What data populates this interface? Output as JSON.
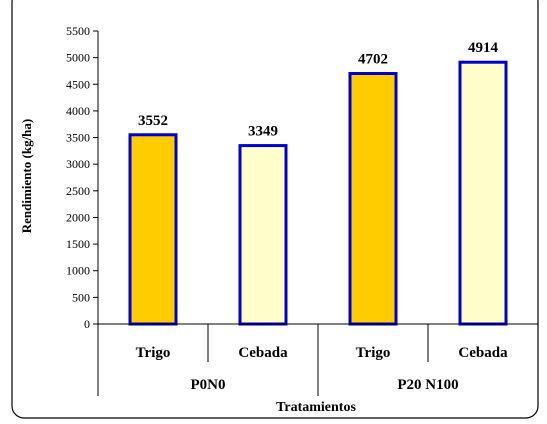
{
  "chart_data": {
    "type": "bar",
    "xlabel": "Tratamientos",
    "ylabel": "Rendimiento (kg/ha)",
    "ylim": [
      0,
      5500
    ],
    "ytick_step": 500,
    "grid": false,
    "legend": "none",
    "groups": [
      {
        "label": "P0N0",
        "bars": [
          {
            "category": "Trigo",
            "value": 3552
          },
          {
            "category": "Cebada",
            "value": 3349
          }
        ]
      },
      {
        "label": "P20 N100",
        "bars": [
          {
            "category": "Trigo",
            "value": 4702
          },
          {
            "category": "Cebada",
            "value": 4914
          }
        ]
      }
    ],
    "colors": {
      "Trigo": "#FFCC00",
      "Cebada": "#FFFFCC",
      "bar_edge": "#0000CC"
    }
  }
}
